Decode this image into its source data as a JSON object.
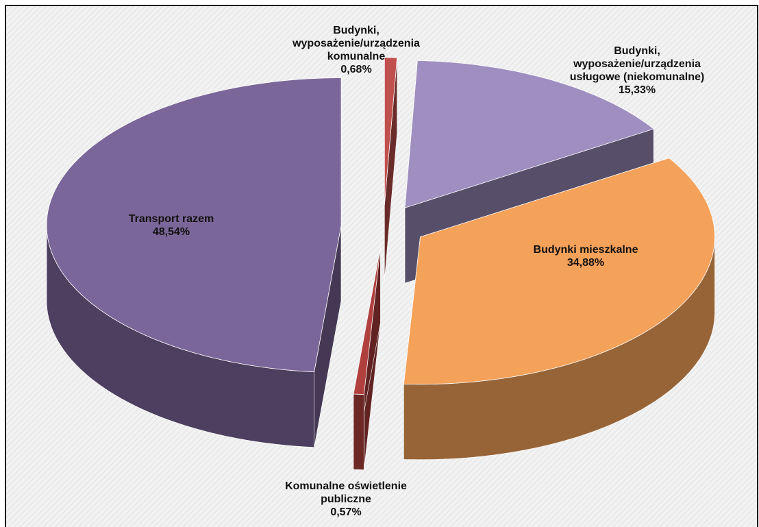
{
  "chart_data": {
    "type": "pie3d",
    "categories": [
      "Budynki, wyposażenie/urządzenia komunalne",
      "Budynki, wyposażenie/urządzenia usługowe (niekomunalne)",
      "Budynki mieszkalne",
      "Komunalne oświetlenie publiczne",
      "Transport razem"
    ],
    "values": [
      0.68,
      15.33,
      34.88,
      0.57,
      48.54
    ],
    "value_labels": [
      "0,68%",
      "15,33%",
      "34,88%",
      "0,57%",
      "48,54%"
    ],
    "colors": [
      "#c0504d",
      "#9f8fc0",
      "#f4a15a",
      "#b0403e",
      "#7b6699"
    ]
  }
}
